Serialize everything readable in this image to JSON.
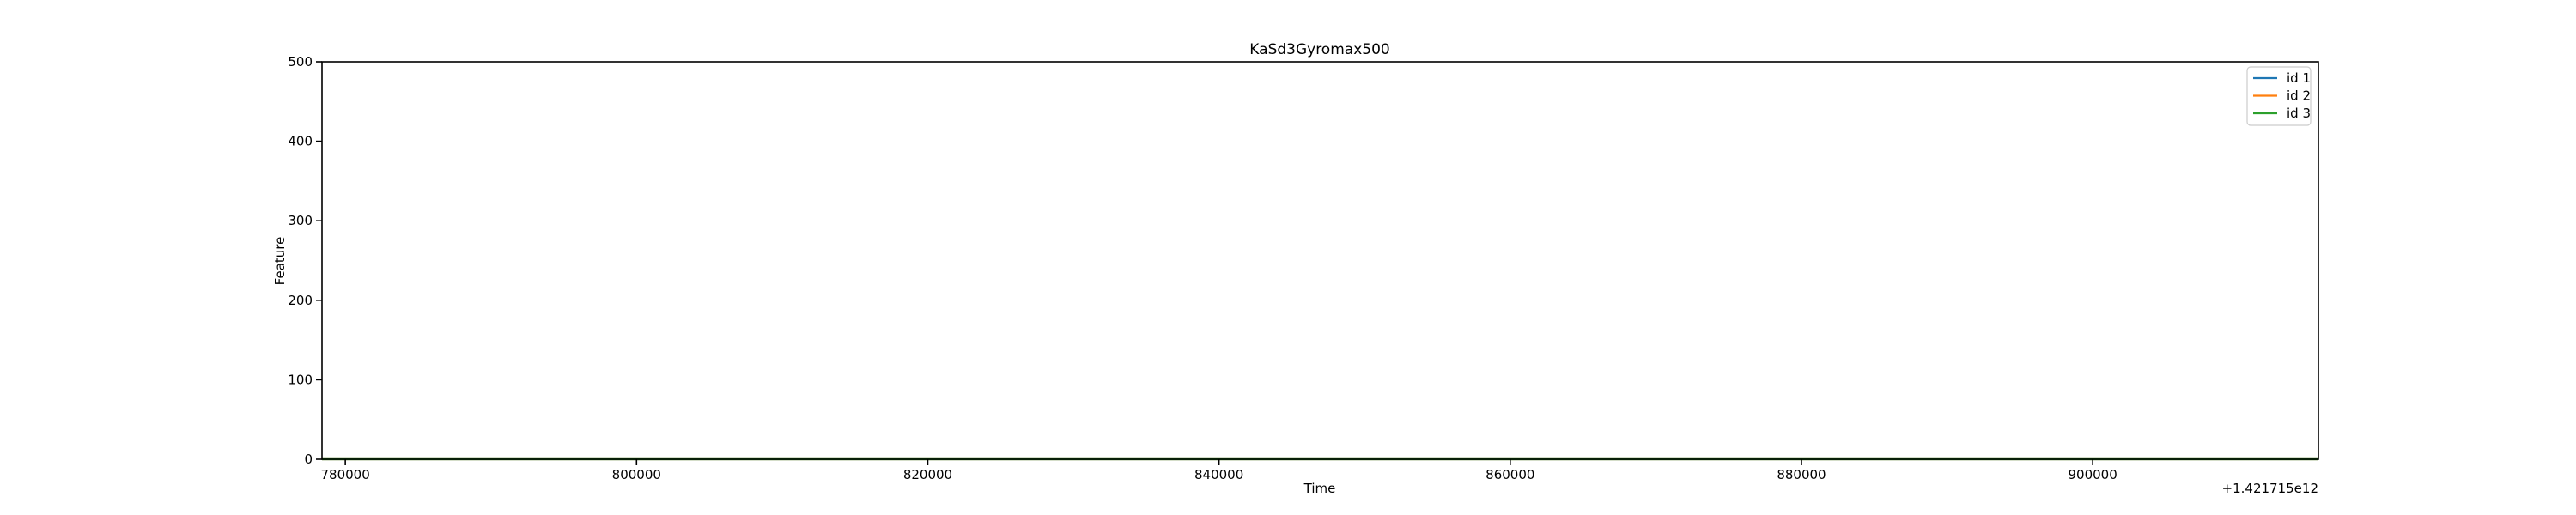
{
  "chart_data": {
    "type": "line",
    "title": "KaSd3Gyromax500",
    "xlabel": "Time",
    "ylabel": "Feature",
    "x_offset_label": "+1.421715e12",
    "x_offset": 1421715000000,
    "xlim": [
      778400,
      915500
    ],
    "ylim": [
      0,
      500
    ],
    "xticks": [
      780000,
      800000,
      820000,
      840000,
      860000,
      880000,
      900000
    ],
    "xtick_labels": [
      "780000",
      "800000",
      "820000",
      "840000",
      "860000",
      "880000",
      "900000"
    ],
    "yticks": [
      0,
      100,
      200,
      300,
      400,
      500
    ],
    "ytick_labels": [
      "0",
      "100",
      "200",
      "300",
      "400",
      "500"
    ],
    "grid": false,
    "legend_position": "top-right",
    "series": [
      {
        "name": "id 1",
        "color": "#1f77b4",
        "x": [
          778400,
          915500
        ],
        "y": [
          0,
          0
        ]
      },
      {
        "name": "id 2",
        "color": "#ff7f0e",
        "x": [
          778400,
          915500
        ],
        "y": [
          0,
          0
        ]
      },
      {
        "name": "id 3",
        "color": "#2ca02c",
        "x": [
          778400,
          915500
        ],
        "y": [
          0,
          0
        ]
      }
    ]
  }
}
